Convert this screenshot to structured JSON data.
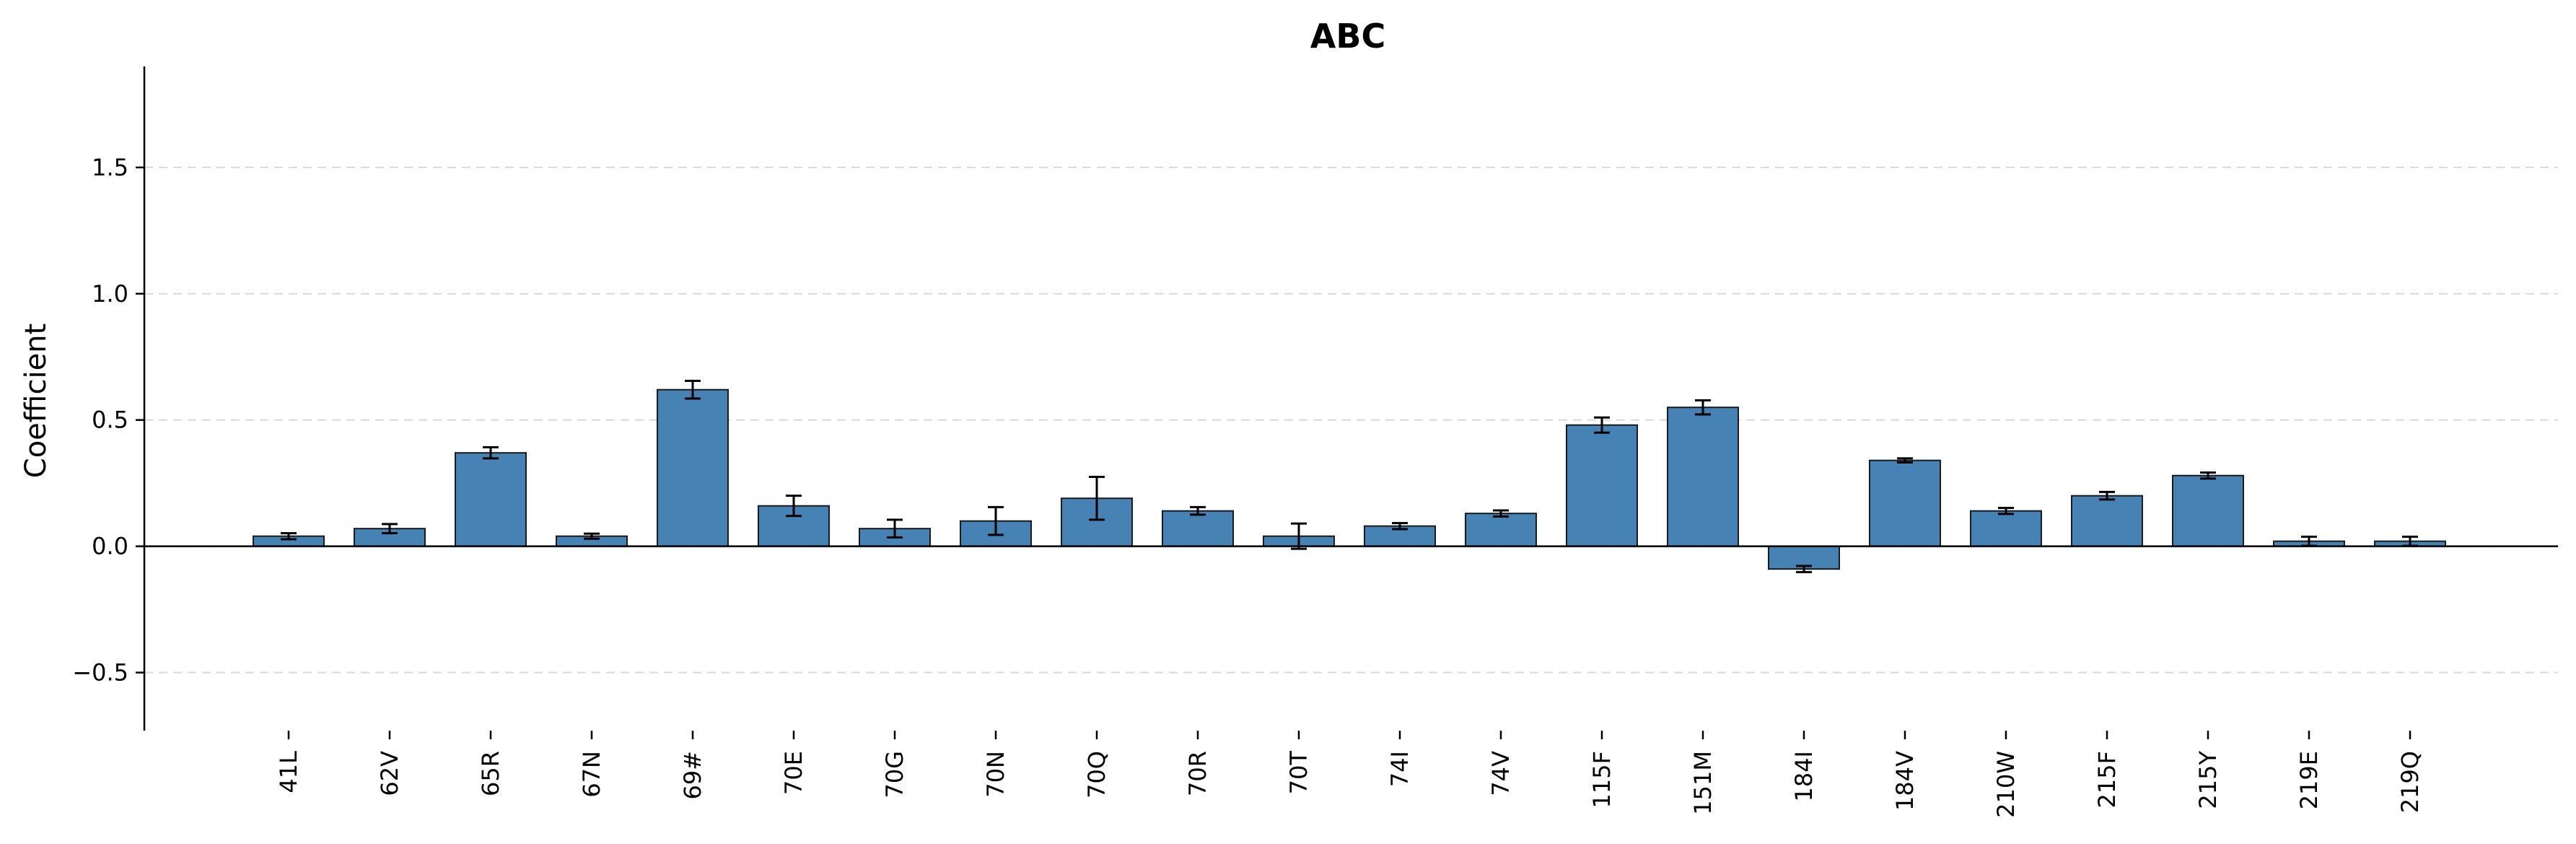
{
  "colors": {
    "bar_fill": "#4682b4",
    "bar_edge": "#1a1a1a",
    "grid": "#d9d9d9",
    "axis": "#000000"
  },
  "chart_data": {
    "type": "bar",
    "title": "ABC",
    "xlabel": "",
    "ylabel": "Coefficient",
    "ylim": [
      -0.73,
      1.9
    ],
    "yticks": [
      -0.5,
      0.0,
      0.5,
      1.0,
      1.5
    ],
    "ytick_labels": [
      "−0.5",
      "0.0",
      "0.5",
      "1.0",
      "1.5"
    ],
    "grid": "horizontal dashed",
    "error_bars": true,
    "categories": [
      "41L",
      "62V",
      "65R",
      "67N",
      "69#",
      "70E",
      "70G",
      "70N",
      "70Q",
      "70R",
      "70T",
      "74I",
      "74V",
      "115F",
      "151M",
      "184I",
      "184V",
      "210W",
      "215F",
      "215Y",
      "219E",
      "219Q"
    ],
    "values": [
      0.04,
      0.07,
      0.37,
      0.04,
      0.62,
      0.16,
      0.07,
      0.1,
      0.19,
      0.14,
      0.04,
      0.08,
      0.13,
      0.48,
      0.55,
      -0.09,
      0.34,
      0.14,
      0.2,
      0.28,
      0.02,
      0.02
    ],
    "errors": [
      0.012,
      0.018,
      0.022,
      0.01,
      0.035,
      0.04,
      0.035,
      0.055,
      0.085,
      0.015,
      0.05,
      0.012,
      0.012,
      0.03,
      0.028,
      0.012,
      0.008,
      0.012,
      0.015,
      0.012,
      0.018,
      0.018
    ]
  }
}
